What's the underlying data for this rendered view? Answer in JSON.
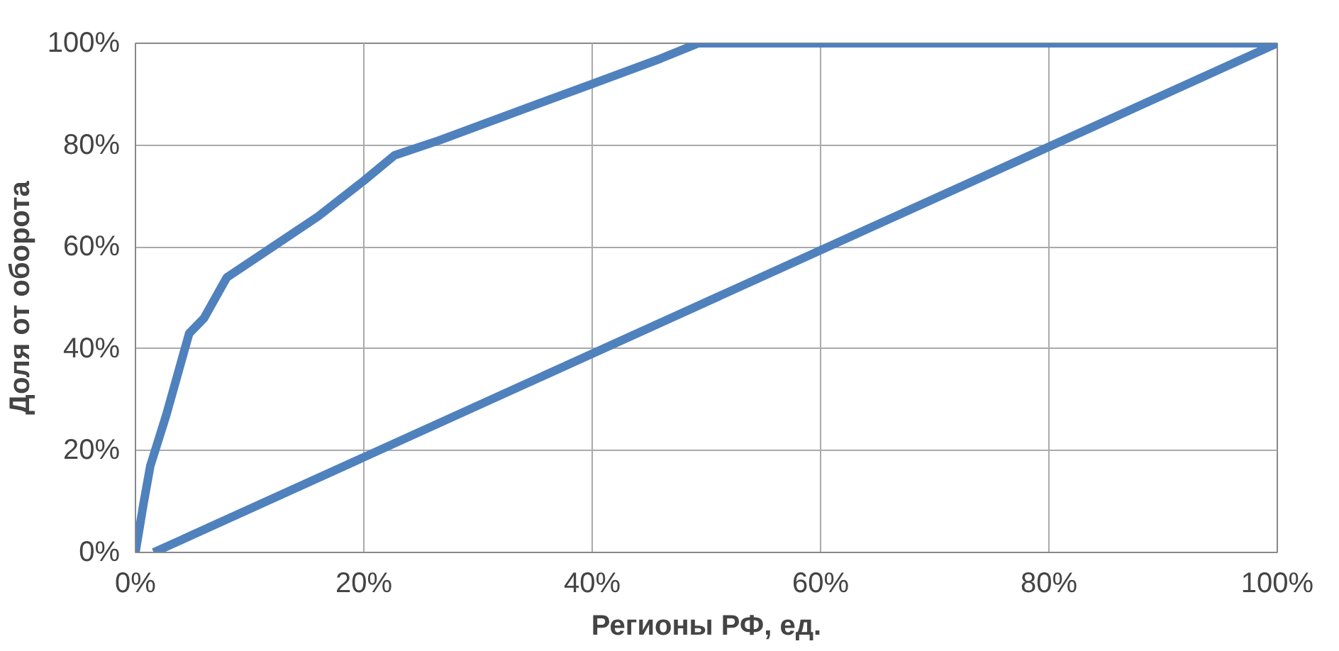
{
  "chart_data": {
    "type": "line",
    "xlabel": "Регионы РФ, ед.",
    "ylabel": "Доля от оборота",
    "xlim": [
      0,
      100
    ],
    "ylim": [
      0,
      100
    ],
    "xticks": [
      {
        "value": 0,
        "label": "0%"
      },
      {
        "value": 20,
        "label": "20%"
      },
      {
        "value": 40,
        "label": "40%"
      },
      {
        "value": 60,
        "label": "60%"
      },
      {
        "value": 80,
        "label": "80%"
      },
      {
        "value": 100,
        "label": "100%"
      }
    ],
    "yticks": [
      {
        "value": 0,
        "label": "0%"
      },
      {
        "value": 20,
        "label": "20%"
      },
      {
        "value": 40,
        "label": "40%"
      },
      {
        "value": 60,
        "label": "60%"
      },
      {
        "value": 80,
        "label": "80%"
      },
      {
        "value": 100,
        "label": "100%"
      }
    ],
    "grid": true,
    "marker": "none",
    "line_style": "solid",
    "series": [
      {
        "color": "#4f81bd",
        "x": [
          0,
          0.7,
          1.3,
          2.7,
          4.7,
          6,
          8,
          12,
          16,
          20,
          22.7,
          26.7,
          32.7,
          40,
          46,
          49.3,
          100
        ],
        "values": [
          0,
          9.5,
          17,
          27,
          43,
          46,
          54,
          60,
          66,
          73,
          78,
          81,
          86,
          92,
          97,
          100,
          100
        ]
      },
      {
        "color": "#4f81bd",
        "x": [
          1.6,
          100
        ],
        "values": [
          0,
          100
        ]
      }
    ]
  }
}
